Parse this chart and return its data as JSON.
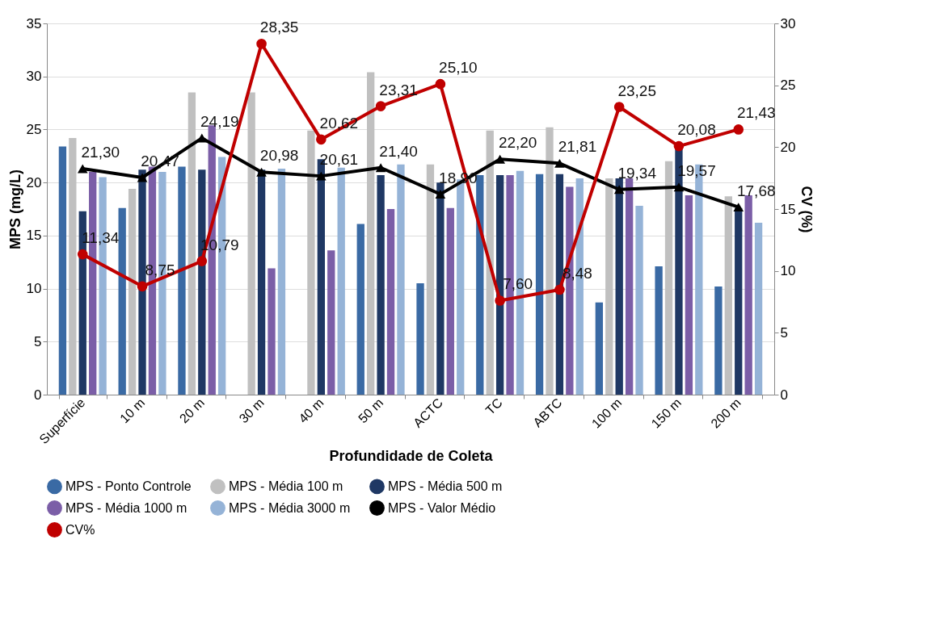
{
  "chart_data": {
    "type": "bar",
    "xlabel": "Profundidade de Coleta",
    "ylabel": "MPS (mg/L)",
    "y2label": "CV (%)",
    "categories": [
      "Superfície",
      "10 m",
      "20 m",
      "30 m",
      "40 m",
      "50 m",
      "ACTC",
      "TC",
      "ABTC",
      "100 m",
      "150 m",
      "200 m"
    ],
    "ylim": [
      0,
      35
    ],
    "yticks": [
      0,
      5,
      10,
      15,
      20,
      25,
      30,
      35
    ],
    "y2lim": [
      0,
      30
    ],
    "y2ticks": [
      0,
      5,
      10,
      15,
      20,
      25,
      30
    ],
    "grid": "y",
    "legend": "bottom",
    "series": [
      {
        "name": "MPS - Ponto Controle",
        "color": "#3a6aa4",
        "values": [
          23.4,
          17.6,
          21.5,
          null,
          null,
          16.1,
          10.5,
          20.7,
          20.8,
          8.7,
          12.1,
          10.2
        ]
      },
      {
        "name": "MPS - Média 100 m",
        "color": "#c0c0c0",
        "values": [
          24.2,
          19.4,
          28.5,
          28.5,
          24.9,
          30.4,
          21.7,
          24.9,
          25.2,
          20.4,
          22.0,
          18.7
        ]
      },
      {
        "name": "MPS - Média 500 m",
        "color": "#1f3864",
        "values": [
          17.3,
          21.2,
          21.2,
          21.2,
          22.2,
          20.7,
          20.0,
          20.7,
          20.8,
          20.4,
          23.2,
          17.6
        ]
      },
      {
        "name": "MPS - Média 1000 m",
        "color": "#7b5ea7",
        "values": [
          21.0,
          21.5,
          25.4,
          11.9,
          13.6,
          17.5,
          17.6,
          20.7,
          19.6,
          20.4,
          18.8,
          18.8
        ]
      },
      {
        "name": "MPS - Média 3000 m",
        "color": "#95b3d7",
        "values": [
          20.5,
          21.0,
          22.4,
          21.3,
          21.4,
          21.7,
          20.3,
          21.1,
          20.4,
          17.8,
          21.7,
          16.2
        ]
      },
      {
        "name": "MPS - Valor Médio",
        "type": "line",
        "color": "#000000",
        "marker": "triangle",
        "values": [
          21.3,
          20.47,
          24.19,
          20.98,
          20.61,
          21.4,
          18.9,
          22.2,
          21.81,
          19.34,
          19.57,
          17.68
        ],
        "value_labels": [
          "21,30",
          "20,47",
          "24,19",
          "20,98",
          "20,61",
          "21,40",
          "18,90",
          "22,20",
          "21,81",
          "19,34",
          "19,57",
          "17,68"
        ]
      },
      {
        "name": "CV%",
        "type": "line",
        "axis": "y2",
        "color": "#c00000",
        "marker": "circle",
        "values": [
          11.34,
          8.75,
          10.79,
          28.35,
          20.62,
          23.31,
          25.1,
          7.6,
          8.48,
          23.25,
          20.08,
          21.43
        ],
        "value_labels": [
          "11,34",
          "8,75",
          "10,79",
          "28,35",
          "20,62",
          "23,31",
          "25,10",
          "7,60",
          "8,48",
          "23,25",
          "20,08",
          "21,43"
        ]
      }
    ]
  }
}
